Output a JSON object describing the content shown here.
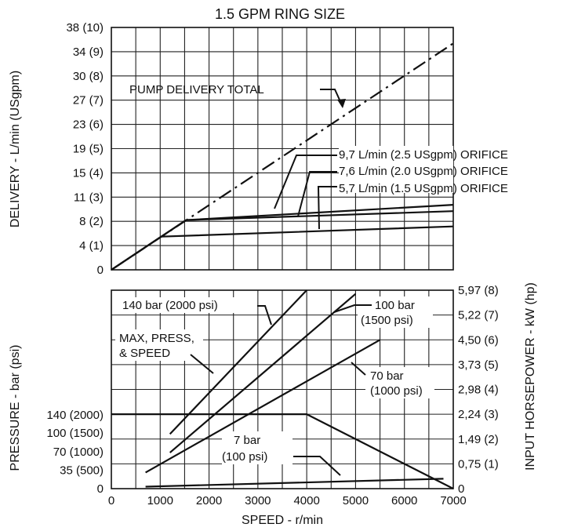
{
  "chart_data": [
    {
      "type": "line",
      "title": "1.5 GPM RING SIZE",
      "xlabel": "",
      "ylabel": "DELIVERY - L/min (USgpm)",
      "xlim": [
        0,
        7000
      ],
      "ylim": [
        0,
        38
      ],
      "grid": true,
      "y_tick_labels": [
        "0",
        "4 (1)",
        "8 (2)",
        "11 (3)",
        "15 (4)",
        "19 (5)",
        "23 (6)",
        "27 (7)",
        "30 (8)",
        "34 (9)",
        "38 (10)"
      ],
      "series": [
        {
          "name": "PUMP DELIVERY TOTAL",
          "style": "dash-dot",
          "x": [
            0,
            7000
          ],
          "y": [
            0,
            35.5
          ]
        },
        {
          "name": "9,7 L/min (2.5 USgpm) ORIFICE",
          "x": [
            0,
            1530,
            7000
          ],
          "y": [
            0,
            7.8,
            10.2
          ]
        },
        {
          "name": "7,6 L/min (2.0 USgpm) ORIFICE",
          "x": [
            0,
            1530,
            7000
          ],
          "y": [
            0,
            7.8,
            9.2
          ]
        },
        {
          "name": "5,7 L/min (1.5 USgpm) ORIFICE",
          "x": [
            0,
            1020,
            7000
          ],
          "y": [
            0,
            5.2,
            6.8
          ]
        }
      ],
      "annotations": [
        "PUMP DELIVERY TOTAL",
        "9,7 L/min (2.5 USgpm) ORIFICE",
        "7,6 L/min (2.0 USgpm) ORIFICE",
        "5,7 L/min (1.5 USgpm) ORIFICE"
      ]
    },
    {
      "type": "line",
      "title": "",
      "xlabel": "SPEED - r/min",
      "ylabel": "PRESSURE - bar (psi)",
      "y2label": "INPUT HORSEPOWER - kW (hp)",
      "xlim": [
        0,
        7000
      ],
      "ylim": [
        0,
        8
      ],
      "grid": true,
      "x_tick_labels": [
        "0",
        "1000",
        "2000",
        "3000",
        "4000",
        "5000",
        "6000",
        "7000"
      ],
      "y_left_tick_labels": [
        {
          "label": "0",
          "at": 0
        },
        {
          "label": "35 (500)",
          "at": 0.75
        },
        {
          "label": "70 (1000)",
          "at": 1.49
        },
        {
          "label": "100 (1500)",
          "at": 2.24
        },
        {
          "label": "140 (2000)",
          "at": 2.98
        }
      ],
      "y_right_tick_labels": [
        "0",
        "0,75 (1)",
        "1,49 (2)",
        "2,24 (3)",
        "2,98 (4)",
        "3,73 (5)",
        "4,50 (6)",
        "5,22 (7)",
        "5,97 (8)"
      ],
      "series": [
        {
          "name": "140 bar (2000 psi)",
          "x": [
            1200,
            4000
          ],
          "y": [
            2.2,
            8.0
          ]
        },
        {
          "name": "100 bar (1500 psi)",
          "x": [
            1200,
            5000
          ],
          "y": [
            1.45,
            7.85
          ]
        },
        {
          "name": "70 bar (1000 psi)",
          "x": [
            700,
            5500
          ],
          "y": [
            0.65,
            6.0
          ]
        },
        {
          "name": "7 bar (100 psi)",
          "x": [
            700,
            6800
          ],
          "y": [
            0.08,
            0.4
          ]
        },
        {
          "name": "MAX, PRESS, & SPEED",
          "x": [
            0,
            4000,
            7000
          ],
          "y": [
            3.0,
            3.0,
            0
          ]
        }
      ],
      "annotations": [
        "140 bar (2000 psi)",
        "100 bar",
        "(1500 psi)",
        "MAX, PRESS,",
        "& SPEED",
        "70 bar",
        "(1000 psi)",
        "7 bar",
        "(100 psi)"
      ]
    }
  ]
}
